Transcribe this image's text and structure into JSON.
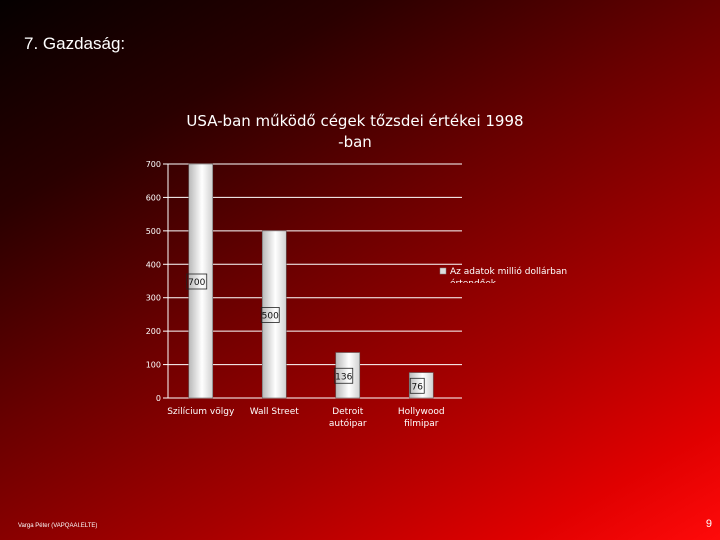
{
  "slide": {
    "title": "7. Gazdaság:",
    "footer": "Varga Péter (VAPQAAI.ELTE)",
    "page_number": "9"
  },
  "colors": {
    "text": "#ffffff",
    "grid": "#ffffff",
    "bar_fill_light": "#ffffff",
    "bar_fill_dark": "#b8b8b8"
  },
  "chart_data": {
    "type": "bar",
    "title_lines": [
      "USA-ban működő cégek tőzsdei értékei 1998",
      "-ban"
    ],
    "categories": [
      [
        "Szilícium völgy"
      ],
      [
        "Wall Street"
      ],
      [
        "Detroit",
        "autóipar"
      ],
      [
        "Hollywood",
        "filmipar"
      ]
    ],
    "values": [
      700,
      500,
      136,
      76
    ],
    "data_labels": [
      "700",
      "500",
      "136",
      "76"
    ],
    "ylim": [
      0,
      700
    ],
    "yticks": [
      0,
      100,
      200,
      300,
      400,
      500,
      600,
      700
    ],
    "grid": true,
    "legend": {
      "position": "right",
      "lines": [
        "Az adatok millió dollárban",
        "értendőek"
      ]
    },
    "xlabel": "",
    "ylabel": ""
  }
}
